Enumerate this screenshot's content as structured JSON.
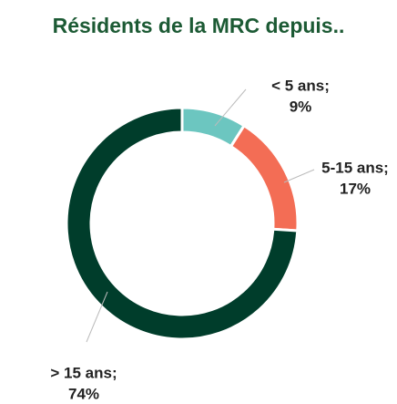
{
  "chart_data": {
    "type": "donut",
    "title": "Résidents de la MRC depuis..",
    "categories": [
      "< 5 ans;",
      "5-15 ans;",
      "> 15 ans;"
    ],
    "values": [
      9,
      17,
      74
    ],
    "value_labels": [
      "9%",
      "17%",
      "74%"
    ],
    "colors": [
      "#6cc6c0",
      "#f36d55",
      "#003d2b"
    ]
  }
}
